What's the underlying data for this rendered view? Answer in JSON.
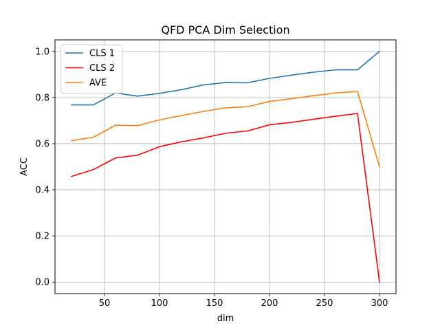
{
  "chart_data": {
    "type": "line",
    "title": "QFD PCA Dim Selection",
    "xlabel": "dim",
    "ylabel": "ACC",
    "x": [
      20,
      40,
      60,
      80,
      100,
      120,
      140,
      160,
      180,
      200,
      220,
      240,
      260,
      280,
      300
    ],
    "series": [
      {
        "name": "CLS 1",
        "color": "#1f77b4",
        "values": [
          0.768,
          0.768,
          0.82,
          0.806,
          0.818,
          0.834,
          0.855,
          0.865,
          0.864,
          0.883,
          0.897,
          0.91,
          0.92,
          0.92,
          1.0
        ]
      },
      {
        "name": "CLS 2",
        "color": "#ff0000",
        "values": [
          0.458,
          0.488,
          0.538,
          0.55,
          0.587,
          0.608,
          0.625,
          0.645,
          0.655,
          0.682,
          0.692,
          0.706,
          0.719,
          0.731,
          0.0
        ]
      },
      {
        "name": "AVE",
        "color": "#ff7f0e",
        "values": [
          0.613,
          0.628,
          0.68,
          0.678,
          0.703,
          0.722,
          0.74,
          0.755,
          0.76,
          0.783,
          0.795,
          0.808,
          0.82,
          0.826,
          0.5
        ]
      }
    ],
    "xlim": [
      5,
      315
    ],
    "ylim": [
      -0.05,
      1.05
    ],
    "xticks": [
      50,
      100,
      150,
      200,
      250,
      300
    ],
    "xtick_labels": [
      "50",
      "100",
      "150",
      "200",
      "250",
      "300"
    ],
    "yticks": [
      0.0,
      0.2,
      0.4,
      0.6,
      0.8,
      1.0
    ],
    "ytick_labels": [
      "0.0",
      "0.2",
      "0.4",
      "0.6",
      "0.8",
      "1.0"
    ],
    "grid": true,
    "legend_position": "upper-left"
  }
}
